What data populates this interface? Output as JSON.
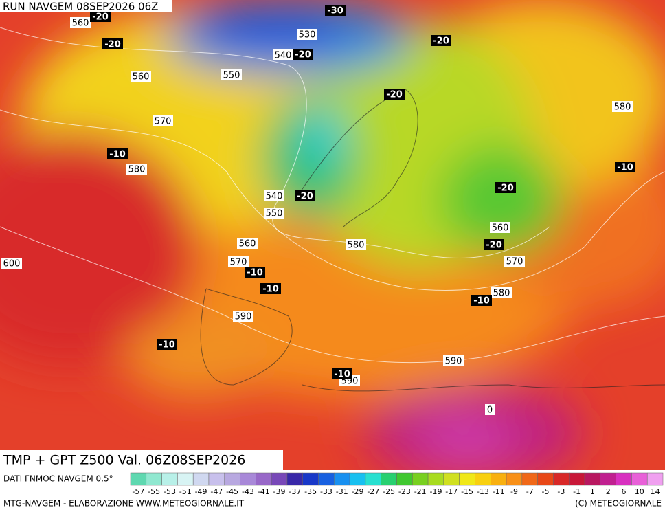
{
  "header": {
    "run": "RUN NAVGEM 08SEP2026 06Z"
  },
  "map": {
    "geopotential_labels": [
      560,
      530,
      540,
      550,
      560,
      570,
      580,
      580,
      540,
      550,
      560,
      580,
      570,
      560,
      570,
      580,
      590,
      590,
      590,
      600
    ],
    "temperature_labels": [
      -20,
      -30,
      -20,
      -20,
      -20,
      -20,
      -10,
      -10,
      -20,
      -20,
      -20,
      -10,
      -10,
      -10,
      -10,
      -10,
      0
    ]
  },
  "title": "TMP + GPT Z500 Val. 06Z08SEP2026",
  "legend": {
    "source": "DATI FNMOC NAVGEM 0.5°",
    "labels": [
      -57,
      -55,
      -53,
      -51,
      -49,
      -47,
      -45,
      -43,
      -41,
      -39,
      -37,
      -35,
      -33,
      -31,
      -29,
      -27,
      -25,
      -23,
      -21,
      -19,
      -17,
      -15,
      -13,
      -11,
      -9,
      -7,
      -5,
      -3,
      -1,
      1,
      2,
      6,
      10,
      14
    ],
    "colors": [
      "#5fd8b0",
      "#90e8d0",
      "#b8f0e8",
      "#d8f4f4",
      "#d0d8f0",
      "#c8c0ec",
      "#b8a8e0",
      "#a888d8",
      "#9868c8",
      "#7848b8",
      "#3828a8",
      "#1838c8",
      "#1860e0",
      "#1890f0",
      "#18c0f0",
      "#28e0d0",
      "#28d070",
      "#40c830",
      "#78d020",
      "#a8dc20",
      "#d0e020",
      "#f0e818",
      "#f8d010",
      "#f8b010",
      "#f89018",
      "#f06818",
      "#e84818",
      "#d82828",
      "#c81838",
      "#b81860",
      "#c02090",
      "#d830c0",
      "#e860d8",
      "#f0a0f0"
    ]
  },
  "footer": {
    "left": "MTG-NAVGEM - ELABORAZIONE WWW.METEOGIORNALE.IT",
    "right": "(C) METEOGIORNALE"
  }
}
